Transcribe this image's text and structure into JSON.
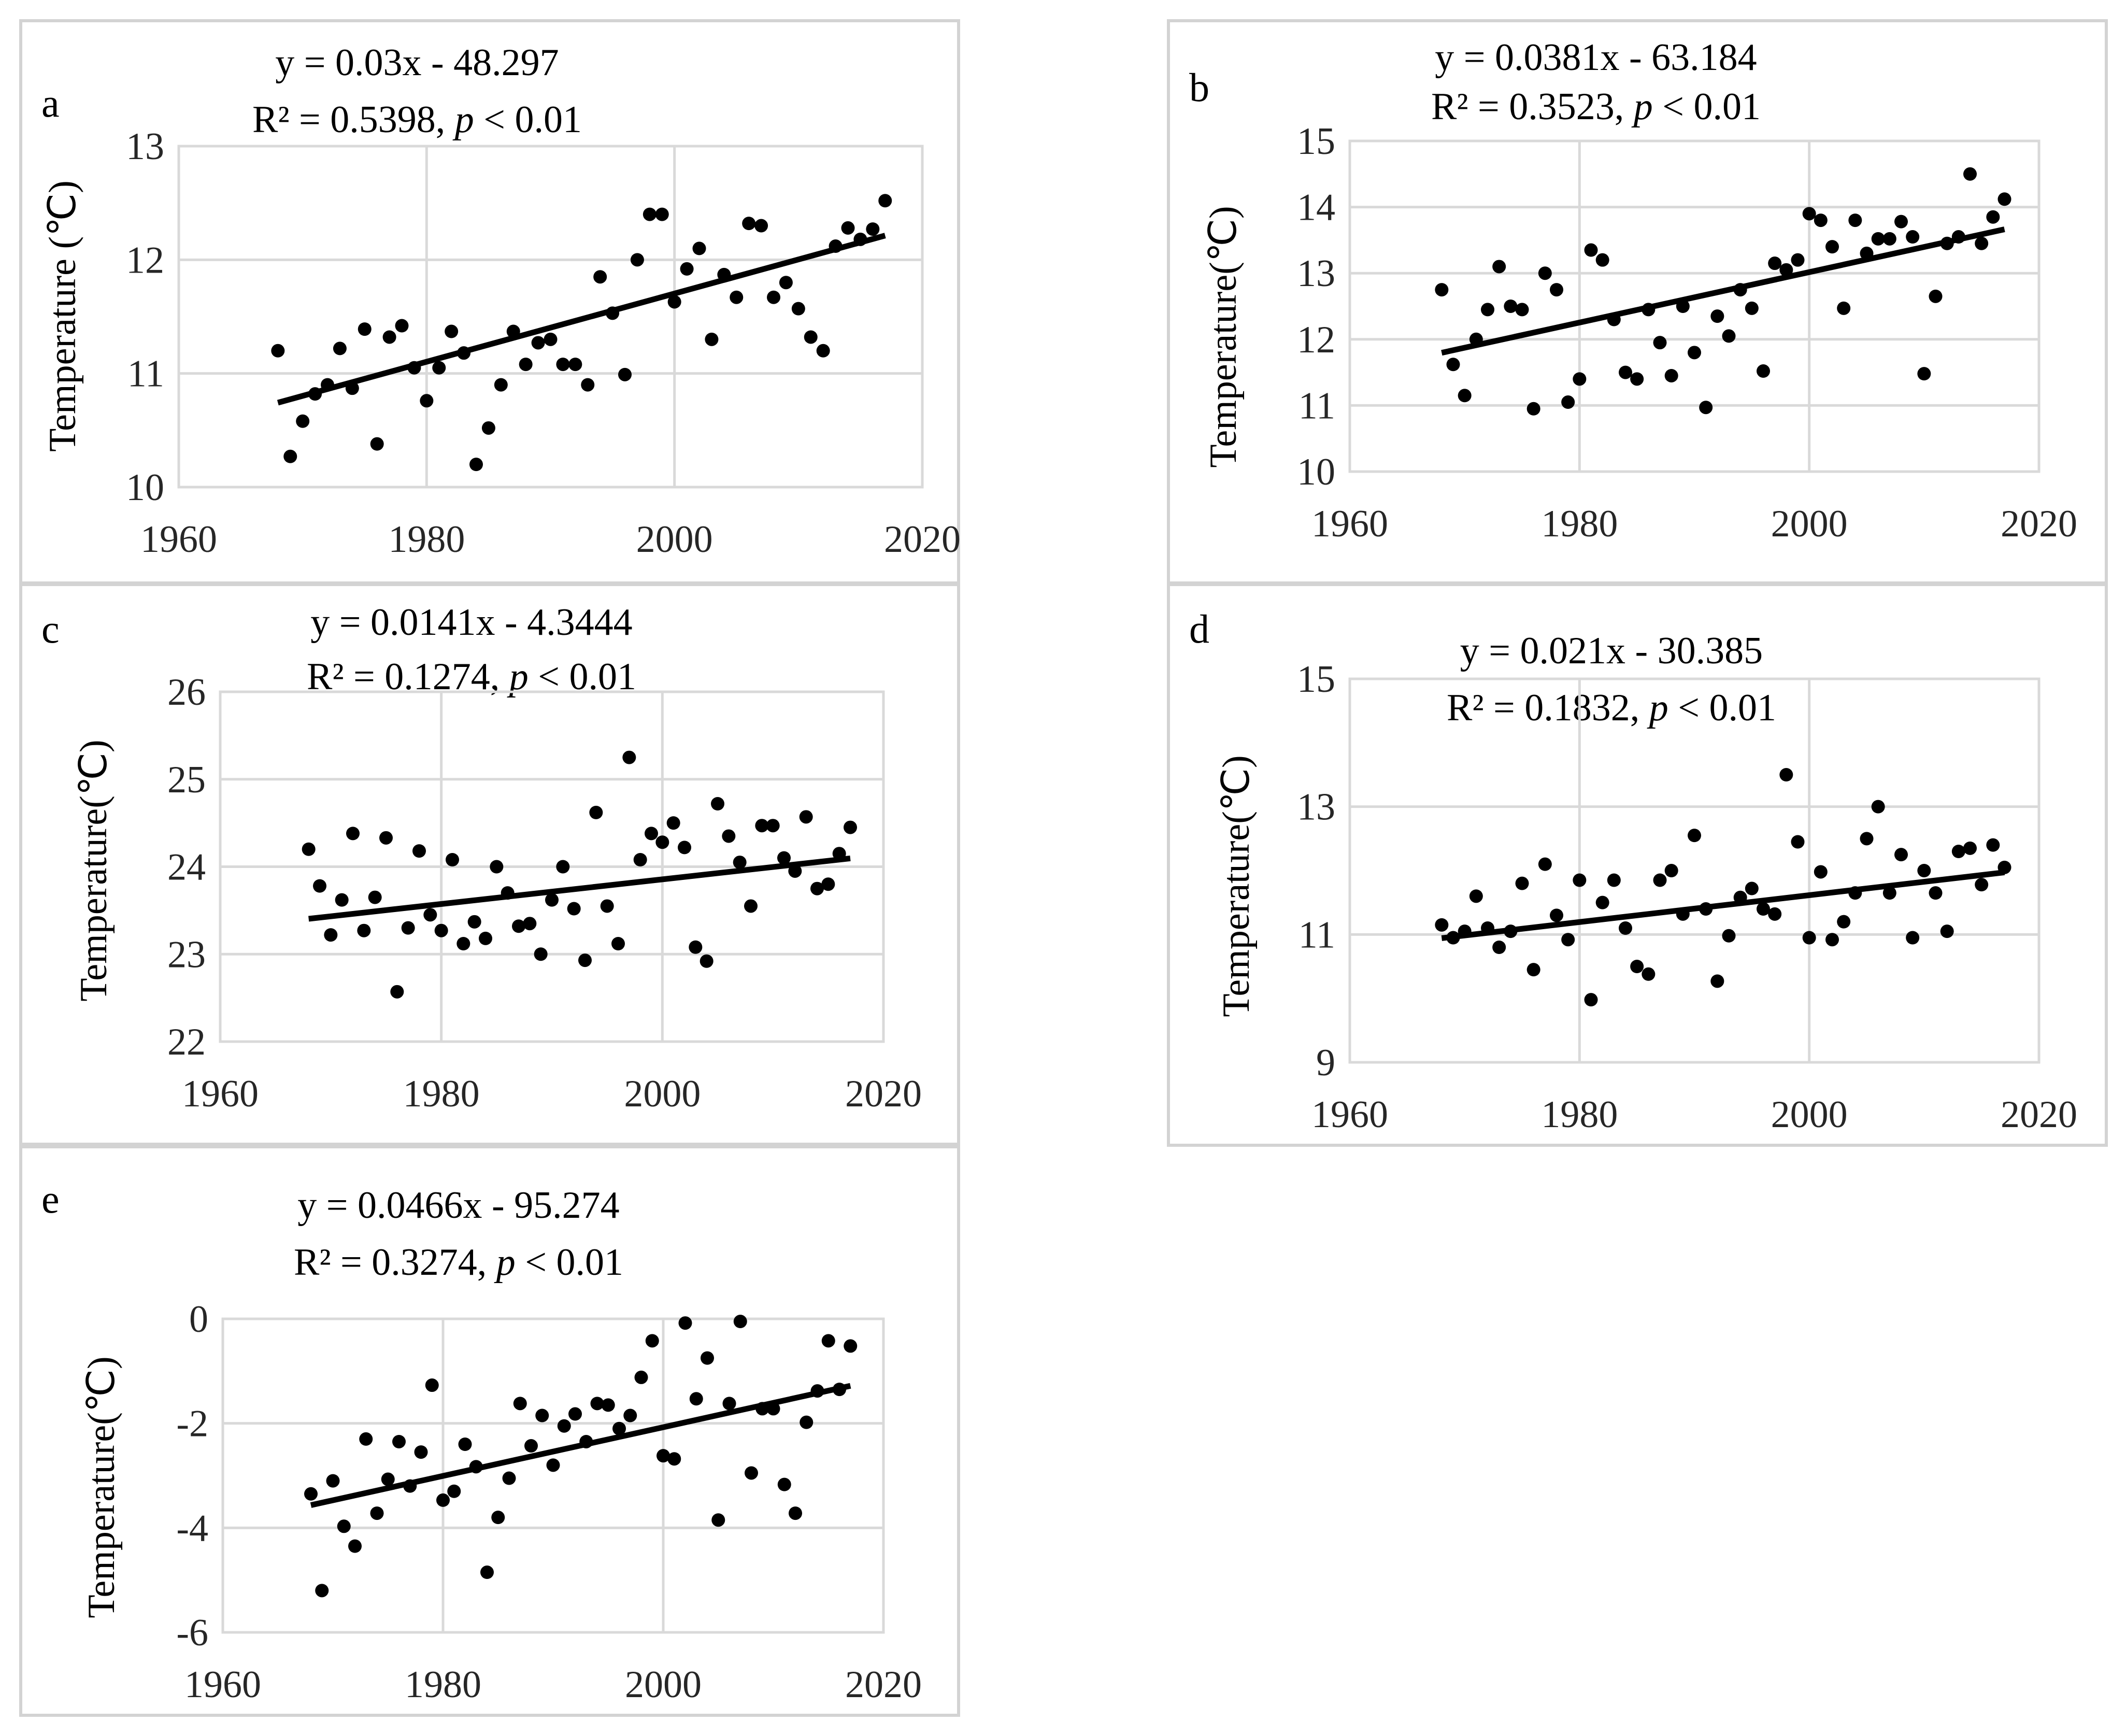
{
  "figure": {
    "background": "#ffffff",
    "panel_border_color": "#d3d3d3",
    "grid_color": "#d9d9d9",
    "marker_color": "#000000"
  },
  "chart_data": [
    {
      "panel": "a",
      "type": "scatter",
      "equation": "y = 0.03x - 48.297",
      "r2_label": "R² = 0.5398, ",
      "p_symbol": "p",
      "p_text": " < 0.01",
      "ylabel": "Temperature (℃)",
      "xlabel": "",
      "xlim": [
        1960,
        2020
      ],
      "ylim": [
        10,
        13
      ],
      "xticks": [
        1960,
        1980,
        2000,
        2020
      ],
      "xtick_labels": [
        "1960",
        "1980",
        "2000",
        "2020"
      ],
      "yticks": [
        10,
        11,
        12,
        13
      ],
      "ytick_labels": [
        "10",
        "11",
        "12",
        "13"
      ],
      "trend": {
        "slope": 0.03,
        "intercept": -48.297,
        "x_range": [
          1968,
          2017
        ]
      },
      "x": [
        1968,
        1969,
        1970,
        1971,
        1972,
        1973,
        1974,
        1975,
        1976,
        1977,
        1978,
        1979,
        1980,
        1981,
        1982,
        1983,
        1984,
        1985,
        1986,
        1987,
        1988,
        1989,
        1990,
        1991,
        1992,
        1993,
        1994,
        1995,
        1996,
        1997,
        1998,
        1999,
        2000,
        2001,
        2002,
        2003,
        2004,
        2005,
        2006,
        2007,
        2008,
        2009,
        2010,
        2011,
        2012,
        2013,
        2014,
        2015,
        2016,
        2017
      ],
      "y": [
        11.2,
        10.27,
        10.58,
        10.82,
        10.9,
        11.22,
        10.87,
        11.39,
        10.38,
        11.32,
        11.42,
        11.05,
        10.76,
        11.05,
        11.37,
        11.18,
        10.2,
        10.52,
        10.9,
        11.37,
        11.08,
        11.27,
        11.3,
        11.08,
        11.08,
        10.9,
        11.85,
        11.53,
        10.99,
        12.0,
        12.4,
        12.4,
        11.63,
        11.92,
        12.1,
        11.3,
        11.87,
        11.67,
        12.32,
        12.3,
        11.67,
        11.8,
        11.57,
        11.32,
        11.2,
        12.12,
        12.28,
        12.18,
        12.27,
        12.52
      ]
    },
    {
      "panel": "b",
      "type": "scatter",
      "equation": "y = 0.0381x - 63.184",
      "r2_label": "R² = 0.3523, ",
      "p_symbol": "p",
      "p_text": " < 0.01",
      "ylabel": "Temperature(℃)",
      "xlabel": "",
      "xlim": [
        1960,
        2020
      ],
      "ylim": [
        10,
        15
      ],
      "xticks": [
        1960,
        1980,
        2000,
        2020
      ],
      "xtick_labels": [
        "1960",
        "1980",
        "2000",
        "2020"
      ],
      "yticks": [
        10,
        11,
        12,
        13,
        14,
        15
      ],
      "ytick_labels": [
        "10",
        "11",
        "12",
        "13",
        "14",
        "15"
      ],
      "trend": {
        "slope": 0.0381,
        "intercept": -63.184,
        "x_range": [
          1968,
          2017
        ]
      },
      "x": [
        1968,
        1969,
        1970,
        1971,
        1972,
        1973,
        1974,
        1975,
        1976,
        1977,
        1978,
        1979,
        1980,
        1981,
        1982,
        1983,
        1984,
        1985,
        1986,
        1987,
        1988,
        1989,
        1990,
        1991,
        1992,
        1993,
        1994,
        1995,
        1996,
        1997,
        1998,
        1999,
        2000,
        2001,
        2002,
        2003,
        2004,
        2005,
        2006,
        2007,
        2008,
        2009,
        2010,
        2011,
        2012,
        2013,
        2014,
        2015,
        2016,
        2017
      ],
      "y": [
        12.75,
        11.62,
        11.15,
        12.0,
        12.45,
        13.1,
        12.5,
        12.45,
        10.95,
        13.0,
        12.75,
        11.05,
        11.4,
        13.35,
        13.2,
        12.3,
        11.5,
        11.4,
        12.45,
        11.95,
        11.45,
        12.5,
        11.8,
        10.97,
        12.35,
        12.05,
        12.75,
        12.47,
        11.52,
        13.15,
        13.05,
        13.2,
        13.9,
        13.8,
        13.4,
        12.47,
        13.8,
        13.3,
        13.52,
        13.52,
        13.78,
        13.55,
        11.48,
        12.65,
        13.45,
        13.55,
        14.5,
        13.45,
        13.85,
        14.12
      ]
    },
    {
      "panel": "c",
      "type": "scatter",
      "equation": "y = 0.0141x - 4.3444",
      "r2_label": "R² = 0.1274, ",
      "p_symbol": "p",
      "p_text": " < 0.01",
      "ylabel": "Temperature(℃)",
      "xlabel": "",
      "xlim": [
        1960,
        2020
      ],
      "ylim": [
        22,
        26
      ],
      "xticks": [
        1960,
        1980,
        2000,
        2020
      ],
      "xtick_labels": [
        "1960",
        "1980",
        "2000",
        "2020"
      ],
      "yticks": [
        22,
        23,
        24,
        25,
        26
      ],
      "ytick_labels": [
        "22",
        "23",
        "24",
        "25",
        "26"
      ],
      "trend": {
        "slope": 0.0141,
        "intercept": -4.3444,
        "x_range": [
          1968,
          2017
        ]
      },
      "x": [
        1968,
        1969,
        1970,
        1971,
        1972,
        1973,
        1974,
        1975,
        1976,
        1977,
        1978,
        1979,
        1980,
        1981,
        1982,
        1983,
        1984,
        1985,
        1986,
        1987,
        1988,
        1989,
        1990,
        1991,
        1992,
        1993,
        1994,
        1995,
        1996,
        1997,
        1998,
        1999,
        2000,
        2001,
        2002,
        2003,
        2004,
        2005,
        2006,
        2007,
        2008,
        2009,
        2010,
        2011,
        2012,
        2013,
        2014,
        2015,
        2016,
        2017
      ],
      "y": [
        24.2,
        23.78,
        23.22,
        23.62,
        24.38,
        23.27,
        23.65,
        24.33,
        22.57,
        23.3,
        24.18,
        23.45,
        23.27,
        24.08,
        23.12,
        23.37,
        23.18,
        24.0,
        23.7,
        23.32,
        23.35,
        23.0,
        23.62,
        24.0,
        23.52,
        22.93,
        24.62,
        23.55,
        23.12,
        25.25,
        24.08,
        24.38,
        24.28,
        24.5,
        24.22,
        23.08,
        22.92,
        24.72,
        24.35,
        24.05,
        23.55,
        24.47,
        24.47,
        24.1,
        23.95,
        24.57,
        23.75,
        23.8,
        24.15,
        24.45
      ]
    },
    {
      "panel": "d",
      "type": "scatter",
      "equation": "y = 0.021x - 30.385",
      "r2_label": "R² = 0.1832, ",
      "p_symbol": "p",
      "p_text": " < 0.01",
      "ylabel": "Temperature(℃)",
      "xlabel": "",
      "xlim": [
        1960,
        2020
      ],
      "ylim": [
        9,
        15
      ],
      "xticks": [
        1960,
        1980,
        2000,
        2020
      ],
      "xtick_labels": [
        "1960",
        "1980",
        "2000",
        "2020"
      ],
      "yticks": [
        9,
        11,
        13,
        15
      ],
      "ytick_labels": [
        "9",
        "11",
        "13",
        "15"
      ],
      "trend": {
        "slope": 0.021,
        "intercept": -30.385,
        "x_range": [
          1968,
          2017
        ]
      },
      "x": [
        1968,
        1969,
        1970,
        1971,
        1972,
        1973,
        1974,
        1975,
        1976,
        1977,
        1978,
        1979,
        1980,
        1981,
        1982,
        1983,
        1984,
        1985,
        1986,
        1987,
        1988,
        1989,
        1990,
        1991,
        1992,
        1993,
        1994,
        1995,
        1996,
        1997,
        1998,
        1999,
        2000,
        2001,
        2002,
        2003,
        2004,
        2005,
        2006,
        2007,
        2008,
        2009,
        2010,
        2011,
        2012,
        2013,
        2014,
        2015,
        2016,
        2017
      ],
      "y": [
        11.15,
        10.95,
        11.05,
        11.6,
        11.1,
        10.8,
        11.05,
        11.8,
        10.45,
        12.1,
        11.3,
        10.92,
        11.85,
        9.98,
        11.5,
        11.85,
        11.1,
        10.5,
        10.38,
        11.85,
        12.0,
        11.32,
        12.55,
        11.4,
        10.27,
        10.98,
        11.58,
        11.72,
        11.4,
        11.32,
        13.5,
        12.45,
        10.95,
        11.98,
        10.92,
        11.2,
        11.65,
        12.5,
        13.0,
        11.65,
        12.25,
        10.95,
        12.0,
        11.65,
        11.05,
        12.3,
        12.35,
        11.78,
        12.4,
        12.05
      ]
    },
    {
      "panel": "e",
      "type": "scatter",
      "equation": "y = 0.0466x - 95.274",
      "r2_label": "R² = 0.3274, ",
      "p_symbol": "p",
      "p_text": " < 0.01",
      "ylabel": "Temperature(℃)",
      "xlabel": "",
      "xlim": [
        1960,
        2020
      ],
      "ylim": [
        -6,
        0
      ],
      "xticks": [
        1960,
        1980,
        2000,
        2020
      ],
      "xtick_labels": [
        "1960",
        "1980",
        "2000",
        "2020"
      ],
      "yticks": [
        -6,
        -4,
        -2,
        0
      ],
      "ytick_labels": [
        "-6",
        "-4",
        "-2",
        "0"
      ],
      "trend": {
        "slope": 0.0466,
        "intercept": -95.274,
        "x_range": [
          1968,
          2017
        ]
      },
      "x": [
        1968,
        1969,
        1970,
        1971,
        1972,
        1973,
        1974,
        1975,
        1976,
        1977,
        1978,
        1979,
        1980,
        1981,
        1982,
        1983,
        1984,
        1985,
        1986,
        1987,
        1988,
        1989,
        1990,
        1991,
        1992,
        1993,
        1994,
        1995,
        1996,
        1997,
        1998,
        1999,
        2000,
        2001,
        2002,
        2003,
        2004,
        2005,
        2006,
        2007,
        2008,
        2009,
        2010,
        2011,
        2012,
        2013,
        2014,
        2015,
        2016,
        2017
      ],
      "y": [
        -3.35,
        -5.2,
        -3.1,
        -3.97,
        -4.35,
        -2.3,
        -3.72,
        -3.07,
        -2.35,
        -3.2,
        -2.55,
        -1.27,
        -3.47,
        -3.3,
        -2.4,
        -2.83,
        -4.85,
        -3.8,
        -3.05,
        -1.62,
        -2.43,
        -1.85,
        -2.8,
        -2.05,
        -1.82,
        -2.35,
        -1.62,
        -1.65,
        -2.1,
        -1.85,
        -1.12,
        -0.42,
        -2.62,
        -2.68,
        -0.08,
        -1.53,
        -0.75,
        -3.85,
        -1.62,
        -0.05,
        -2.95,
        -1.72,
        -1.72,
        -3.17,
        -3.72,
        -1.98,
        -1.38,
        -0.42,
        -1.35,
        -0.52
      ]
    }
  ]
}
